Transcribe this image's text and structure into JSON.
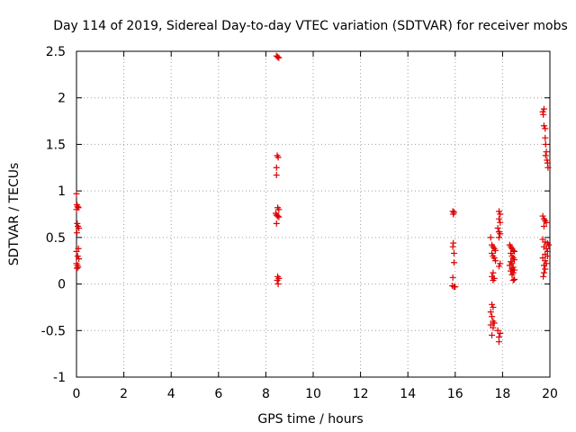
{
  "chart_data": {
    "type": "scatter",
    "title": "Day 114 of 2019, Sidereal Day-to-day VTEC variation (SDTVAR) for receiver mobs",
    "xlabel": "GPS time / hours",
    "ylabel": "SDTVAR / TECUs",
    "xlim": [
      0,
      20
    ],
    "ylim": [
      -1,
      2.5
    ],
    "xticks": [
      0,
      2,
      4,
      6,
      8,
      10,
      12,
      14,
      16,
      18,
      20
    ],
    "yticks": [
      -1,
      -0.5,
      0,
      0.5,
      1,
      1.5,
      2,
      2.5
    ],
    "xtick_labels": [
      "0",
      "2",
      "4",
      "6",
      "8",
      "10",
      "12",
      "14",
      "16",
      "18",
      "20"
    ],
    "ytick_labels": [
      "-1",
      "-0.5",
      "0",
      "0.5",
      "1",
      "1.5",
      "2",
      "2.5"
    ],
    "grid": true,
    "marker": "+",
    "series": [
      {
        "name": "SDTVAR",
        "color": "#dd0000",
        "points": [
          [
            0.0,
            0.97
          ],
          [
            0.02,
            0.85
          ],
          [
            0.05,
            0.83
          ],
          [
            0.08,
            0.82
          ],
          [
            0.0,
            0.8
          ],
          [
            0.03,
            0.65
          ],
          [
            0.06,
            0.62
          ],
          [
            0.1,
            0.6
          ],
          [
            0.02,
            0.55
          ],
          [
            0.08,
            0.38
          ],
          [
            0.0,
            0.35
          ],
          [
            0.05,
            0.3
          ],
          [
            0.1,
            0.27
          ],
          [
            0.0,
            0.22
          ],
          [
            0.04,
            0.2
          ],
          [
            0.07,
            0.18
          ],
          [
            0.02,
            0.17
          ],
          [
            8.45,
            2.45
          ],
          [
            8.5,
            2.44
          ],
          [
            8.55,
            2.43
          ],
          [
            8.48,
            1.38
          ],
          [
            8.52,
            1.36
          ],
          [
            8.45,
            1.25
          ],
          [
            8.45,
            1.17
          ],
          [
            8.5,
            0.82
          ],
          [
            8.55,
            0.8
          ],
          [
            8.42,
            0.76
          ],
          [
            8.45,
            0.74
          ],
          [
            8.5,
            0.73
          ],
          [
            8.55,
            0.72
          ],
          [
            8.45,
            0.65
          ],
          [
            8.5,
            0.08
          ],
          [
            8.55,
            0.06
          ],
          [
            8.48,
            0.04
          ],
          [
            8.52,
            0.0
          ],
          [
            15.9,
            0.78
          ],
          [
            15.95,
            0.77
          ],
          [
            15.92,
            0.75
          ],
          [
            15.92,
            0.44
          ],
          [
            15.9,
            0.4
          ],
          [
            15.95,
            0.33
          ],
          [
            15.95,
            0.23
          ],
          [
            15.9,
            0.07
          ],
          [
            15.88,
            -0.02
          ],
          [
            15.95,
            -0.03
          ],
          [
            16.0,
            -0.03
          ],
          [
            17.5,
            0.5
          ],
          [
            17.55,
            0.42
          ],
          [
            17.6,
            0.4
          ],
          [
            17.65,
            0.38
          ],
          [
            17.7,
            0.36
          ],
          [
            17.55,
            0.33
          ],
          [
            17.6,
            0.3
          ],
          [
            17.65,
            0.28
          ],
          [
            17.7,
            0.25
          ],
          [
            17.6,
            0.12
          ],
          [
            17.55,
            0.08
          ],
          [
            17.65,
            0.06
          ],
          [
            17.6,
            0.04
          ],
          [
            17.55,
            -0.22
          ],
          [
            17.6,
            -0.25
          ],
          [
            17.5,
            -0.3
          ],
          [
            17.55,
            -0.35
          ],
          [
            17.6,
            -0.4
          ],
          [
            17.65,
            -0.42
          ],
          [
            17.5,
            -0.44
          ],
          [
            17.6,
            -0.47
          ],
          [
            17.55,
            -0.55
          ],
          [
            17.85,
            0.78
          ],
          [
            17.9,
            0.75
          ],
          [
            17.85,
            0.7
          ],
          [
            17.9,
            0.66
          ],
          [
            17.8,
            0.6
          ],
          [
            17.85,
            0.56
          ],
          [
            17.9,
            0.54
          ],
          [
            17.85,
            0.5
          ],
          [
            17.9,
            0.22
          ],
          [
            17.85,
            0.19
          ],
          [
            17.8,
            -0.5
          ],
          [
            17.9,
            -0.53
          ],
          [
            17.85,
            -0.57
          ],
          [
            17.85,
            -0.62
          ],
          [
            18.3,
            0.42
          ],
          [
            18.35,
            0.4
          ],
          [
            18.4,
            0.38
          ],
          [
            18.45,
            0.36
          ],
          [
            18.5,
            0.35
          ],
          [
            18.35,
            0.33
          ],
          [
            18.4,
            0.3
          ],
          [
            18.45,
            0.28
          ],
          [
            18.5,
            0.26
          ],
          [
            18.35,
            0.24
          ],
          [
            18.4,
            0.22
          ],
          [
            18.3,
            0.2
          ],
          [
            18.45,
            0.18
          ],
          [
            18.4,
            0.16
          ],
          [
            18.5,
            0.15
          ],
          [
            18.35,
            0.14
          ],
          [
            18.45,
            0.12
          ],
          [
            18.4,
            0.1
          ],
          [
            18.5,
            0.05
          ],
          [
            18.45,
            0.04
          ],
          [
            19.7,
            1.85
          ],
          [
            19.75,
            1.88
          ],
          [
            19.72,
            1.82
          ],
          [
            19.75,
            1.7
          ],
          [
            19.8,
            1.67
          ],
          [
            19.8,
            1.57
          ],
          [
            19.82,
            1.5
          ],
          [
            19.85,
            1.42
          ],
          [
            19.82,
            1.38
          ],
          [
            19.88,
            1.33
          ],
          [
            19.9,
            1.3
          ],
          [
            19.92,
            1.25
          ],
          [
            19.7,
            0.73
          ],
          [
            19.75,
            0.7
          ],
          [
            19.8,
            0.68
          ],
          [
            19.85,
            0.66
          ],
          [
            19.75,
            0.62
          ],
          [
            19.7,
            0.48
          ],
          [
            19.8,
            0.45
          ],
          [
            19.9,
            0.44
          ],
          [
            19.95,
            0.42
          ],
          [
            19.75,
            0.4
          ],
          [
            19.85,
            0.38
          ],
          [
            19.9,
            0.35
          ],
          [
            19.8,
            0.32
          ],
          [
            19.9,
            0.3
          ],
          [
            19.7,
            0.28
          ],
          [
            19.8,
            0.25
          ],
          [
            19.85,
            0.22
          ],
          [
            19.75,
            0.2
          ],
          [
            19.8,
            0.16
          ],
          [
            19.75,
            0.12
          ],
          [
            19.72,
            0.08
          ]
        ]
      }
    ]
  }
}
